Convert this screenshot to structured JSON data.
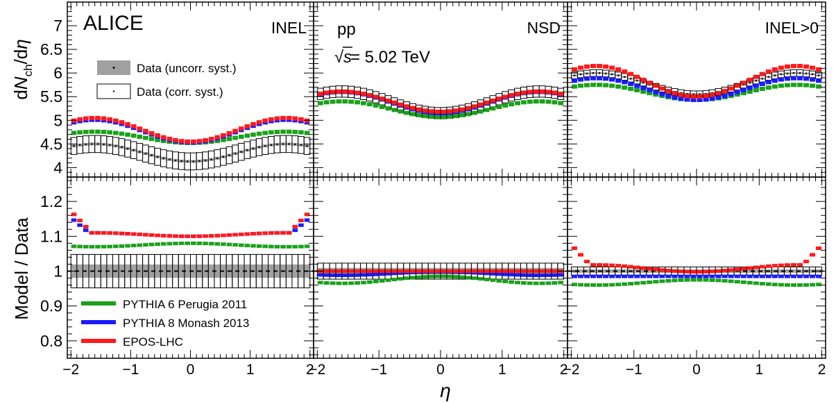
{
  "figure": {
    "experiment": "ALICE",
    "system": "pp",
    "energy_prefix": "√",
    "energy_var": "s",
    "energy_value": " = 5.02 TeV",
    "xlabel": "η",
    "ylabel_top": {
      "a": "d",
      "b": "N",
      "c": "ch",
      "d": "/d",
      "e": "η"
    },
    "ylabel_bottom": "Model / Data"
  },
  "legend_data": {
    "uncorr": "Data (uncorr. syst.)",
    "corr": "Data (corr. syst.)"
  },
  "legend_models": [
    {
      "label": "PYTHIA 6 Perugia 2011",
      "color": "#1aa11a"
    },
    {
      "label": "PYTHIA 8 Monash 2013",
      "color": "#1a1aff"
    },
    {
      "label": "EPOS-LHC",
      "color": "#ff1a1a"
    }
  ],
  "colors": {
    "pythia6": "#1aa11a",
    "pythia8": "#1a1aff",
    "epos": "#ff1a1a",
    "uncorr_fill": "#a0a0a0",
    "frame": "#000000"
  },
  "chart_data": {
    "type": "scatter",
    "x_ticks": [
      -2,
      -1,
      0,
      1,
      2
    ],
    "x_tick_labels": [
      "−2",
      "−1",
      "0",
      "1",
      "2"
    ],
    "top": {
      "ylim": [
        3.8,
        7.5
      ],
      "y_ticks": [
        4,
        4.5,
        5,
        5.5,
        6,
        6.5,
        7
      ],
      "y_tick_labels": [
        "4",
        "4.5",
        "5",
        "5.5",
        "6",
        "6.5",
        "7"
      ]
    },
    "bottom": {
      "ylim": [
        0.75,
        1.27
      ],
      "y_ticks": [
        0.8,
        0.9,
        1.0,
        1.1,
        1.2
      ],
      "y_tick_labels": [
        "0.8",
        "0.9",
        "1",
        "1.1",
        "1.2"
      ]
    },
    "panels": [
      {
        "label": "INEL",
        "data": {
          "center": 4.13,
          "amp": 0.37,
          "syst_corr": 0.18,
          "syst_uncorr": 0.03
        },
        "models": {
          "pythia6": {
            "center": 4.52,
            "amp": 0.24
          },
          "pythia8": {
            "center": 4.53,
            "amp": 0.48
          },
          "epos": {
            "center": 4.55,
            "amp": 0.5
          }
        },
        "ratio_syst_corr": 0.048,
        "ratios": {
          "pythia6": {
            "center": 1.08,
            "amp": -0.01
          },
          "pythia8": {
            "center": 1.1,
            "amp": 0.01
          },
          "epos": {
            "center": 1.1,
            "amp": 0.01
          }
        }
      },
      {
        "label": "NSD",
        "data": {
          "center": 5.15,
          "amp": 0.46,
          "syst_corr": 0.12,
          "syst_uncorr": 0.03
        },
        "models": {
          "pythia6": {
            "center": 5.07,
            "amp": 0.33
          },
          "pythia8": {
            "center": 5.15,
            "amp": 0.45
          },
          "epos": {
            "center": 5.18,
            "amp": 0.43
          }
        },
        "ratio_syst_corr": 0.023,
        "ratios": {
          "pythia6": {
            "center": 0.985,
            "amp": -0.02
          },
          "pythia8": {
            "center": 0.998,
            "amp": -0.01
          },
          "epos": {
            "center": 1.0,
            "amp": 0.0
          }
        }
      },
      {
        "label": "INEL>0",
        "data": {
          "center": 5.55,
          "amp": 0.45,
          "syst_corr": 0.07,
          "syst_uncorr": 0.02
        },
        "models": {
          "pythia6": {
            "center": 5.43,
            "amp": 0.32
          },
          "pythia8": {
            "center": 5.43,
            "amp": 0.46
          },
          "epos": {
            "center": 5.5,
            "amp": 0.65
          }
        },
        "ratio_syst_corr": 0.012,
        "ratios": {
          "pythia6": {
            "center": 0.975,
            "amp": -0.015
          },
          "pythia8": {
            "center": 0.985,
            "amp": 0.0
          },
          "epos": {
            "center": 0.998,
            "amp": 0.02
          }
        }
      }
    ]
  }
}
